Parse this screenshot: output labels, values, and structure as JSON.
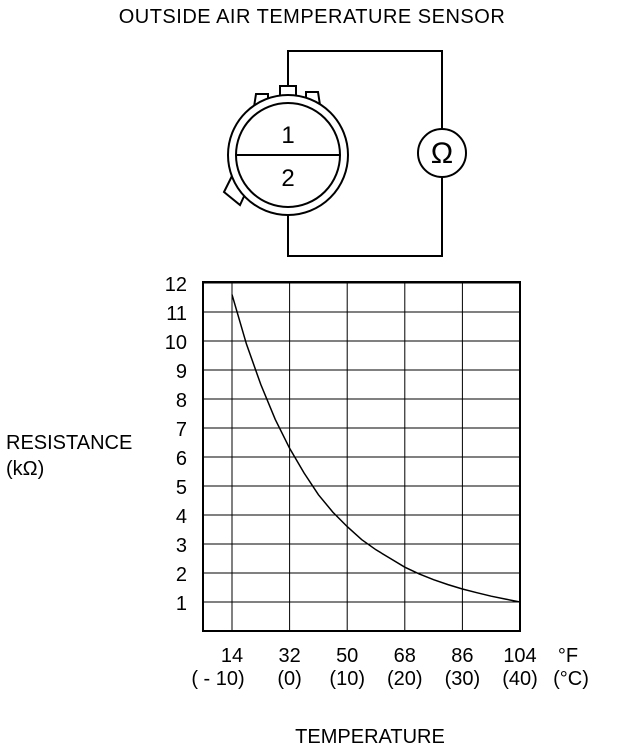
{
  "title": "OUTSIDE AIR TEMPERATURE SENSOR",
  "connector": {
    "pin_top": "1",
    "pin_bottom": "2",
    "meter_symbol": "Ω"
  },
  "chart_data": {
    "type": "line",
    "ylabel": [
      "RESISTANCE",
      "(kΩ)"
    ],
    "xlabel": "TEMPERATURE",
    "x_unit_f": "°F",
    "x_unit_c": "(°C)",
    "x_ticks_f": [
      "14",
      "32",
      "50",
      "68",
      "86",
      "104"
    ],
    "x_ticks_c": [
      "( - 10)",
      "(0)",
      "(10)",
      "(20)",
      "(30)",
      "(40)"
    ],
    "y_ticks": [
      "12",
      "11",
      "10",
      "9",
      "8",
      "7",
      "6",
      "5",
      "4",
      "3",
      "2",
      "1"
    ],
    "xlim_c": [
      -10,
      40
    ],
    "ylim": [
      1,
      12
    ],
    "grid": true,
    "series": [
      {
        "x": [
          -10,
          -7.5,
          -5,
          -2.5,
          0,
          2.5,
          5,
          7.5,
          10,
          12.5,
          15,
          17.5,
          20,
          22.5,
          25,
          27.5,
          30,
          32.5,
          35,
          37.5,
          40
        ],
        "y": [
          11.6,
          9.9,
          8.5,
          7.3,
          6.3,
          5.45,
          4.7,
          4.1,
          3.6,
          3.15,
          2.8,
          2.5,
          2.2,
          1.97,
          1.77,
          1.6,
          1.45,
          1.32,
          1.2,
          1.1,
          1.0
        ]
      }
    ]
  }
}
